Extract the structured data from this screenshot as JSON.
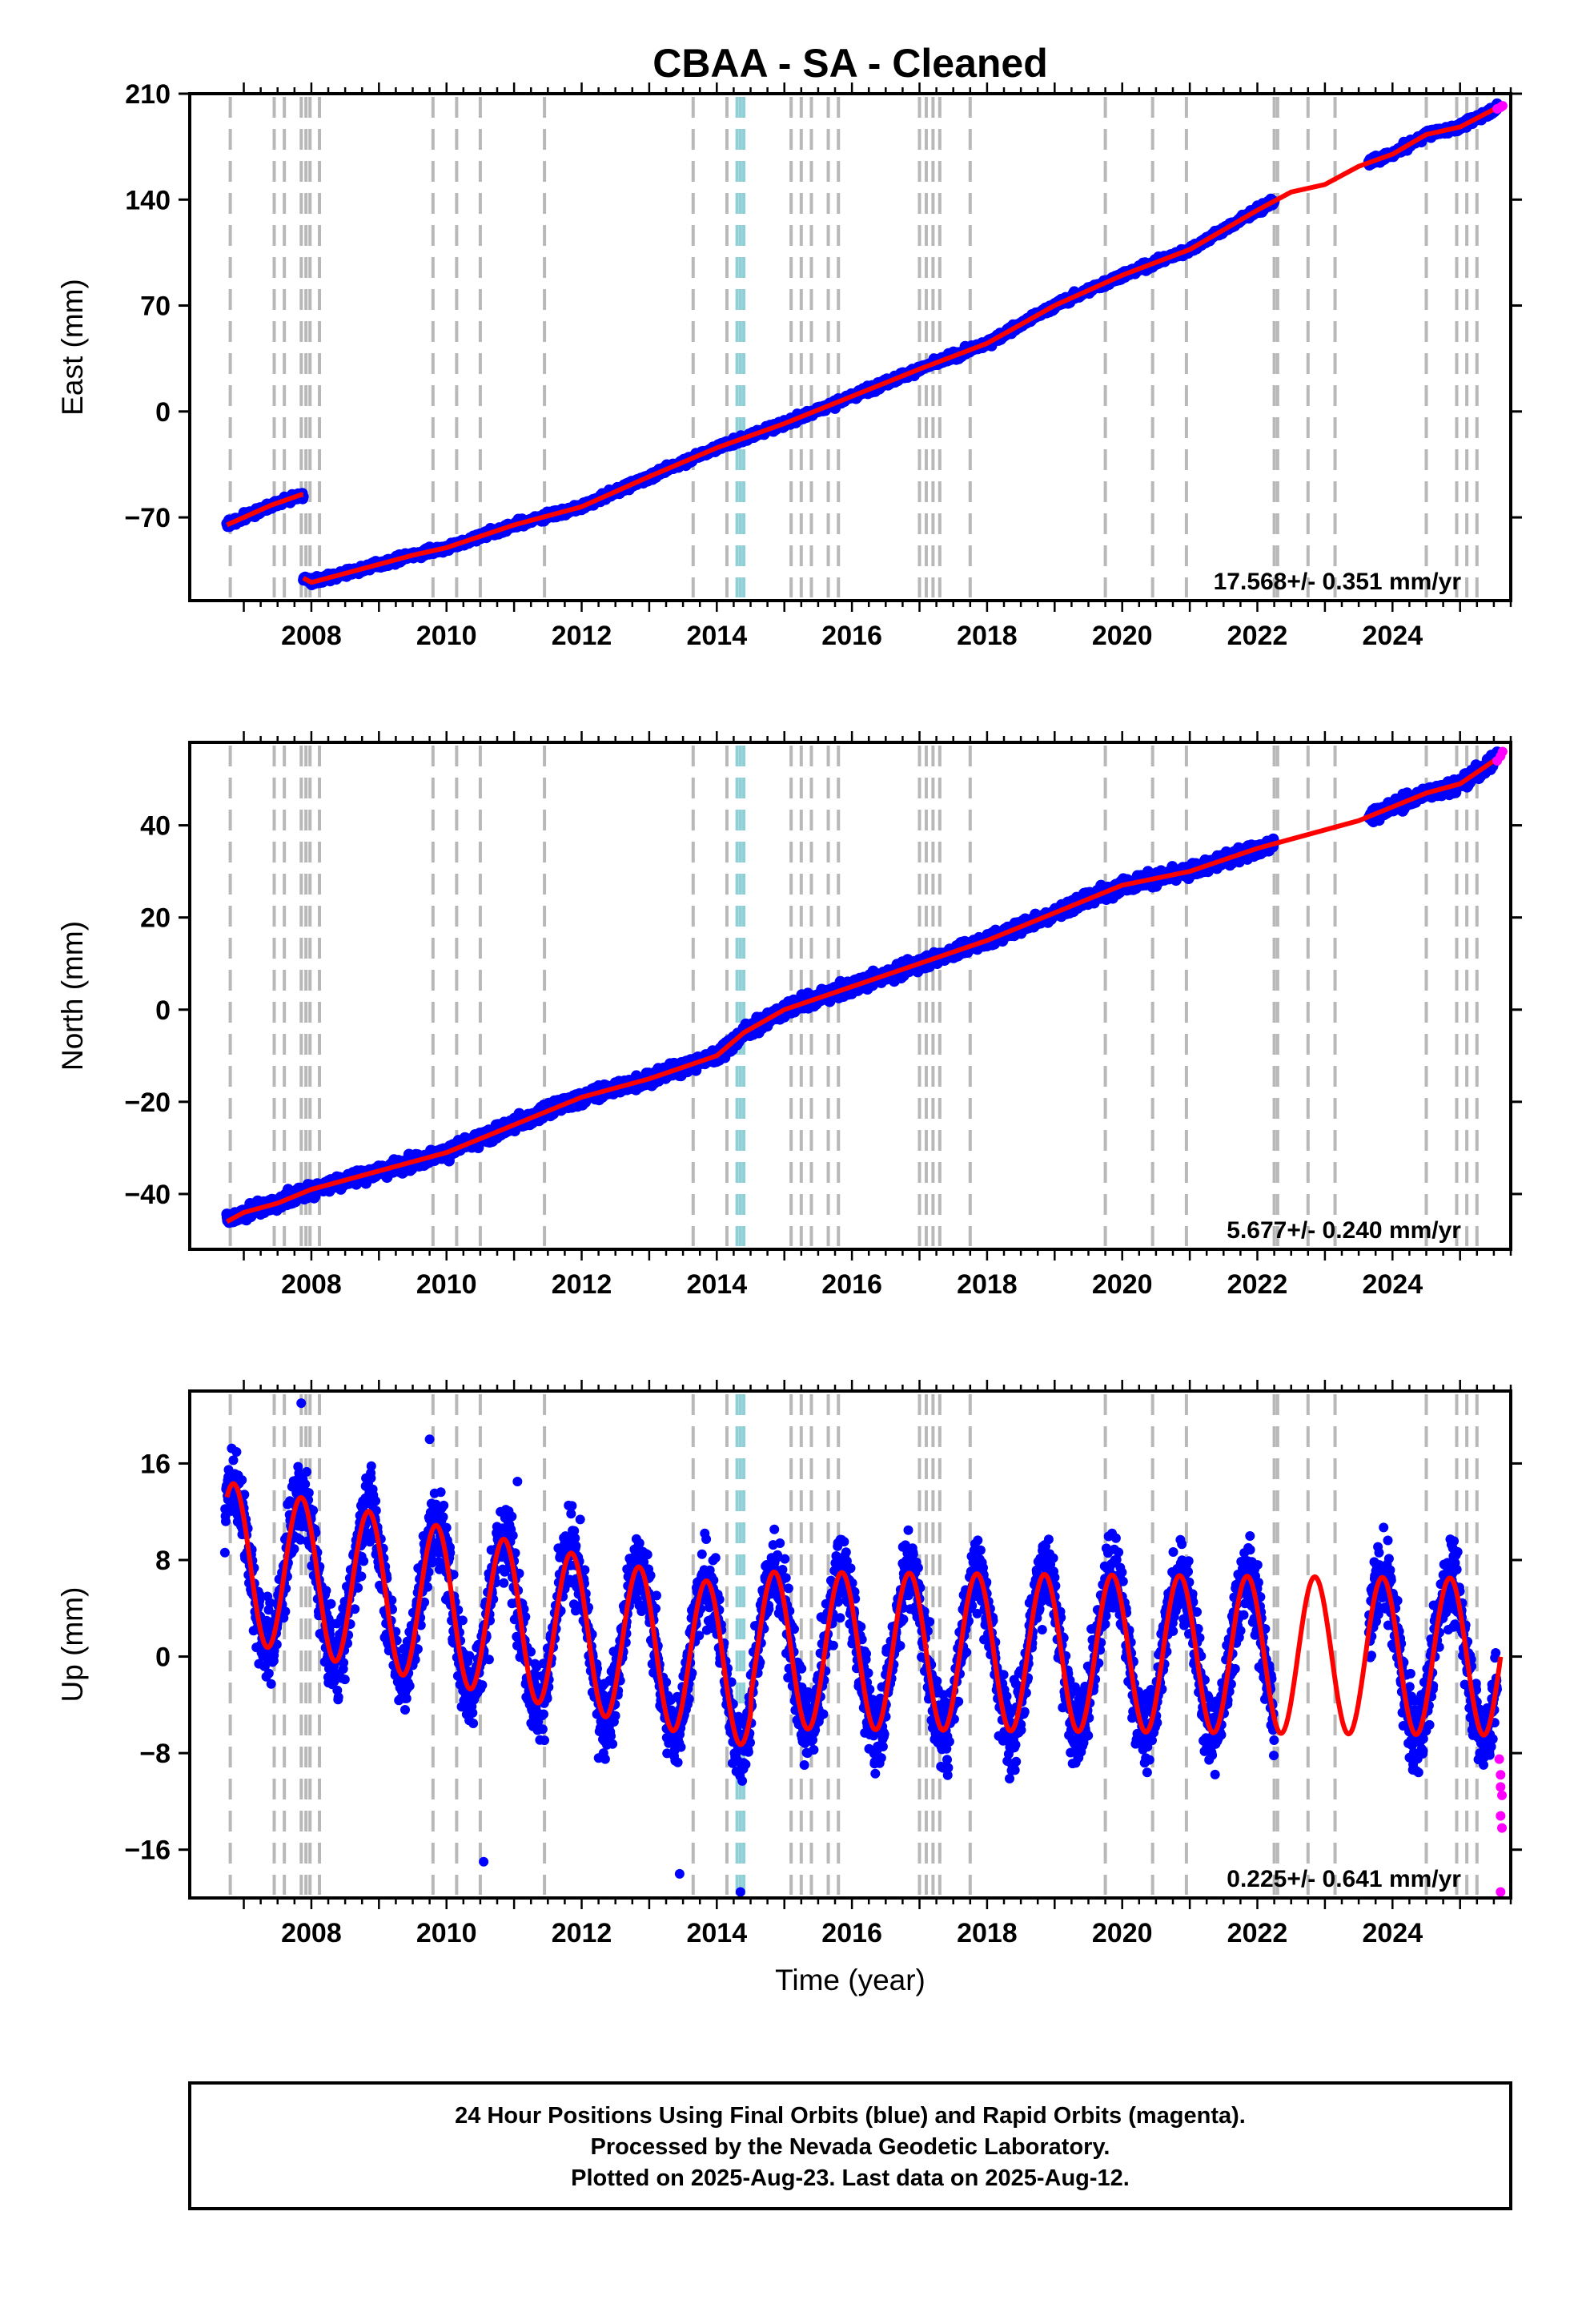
{
  "chart_data": {
    "type": "scatter",
    "title": "CBAA  - SA - Cleaned",
    "xlabel": "Time (year)",
    "xlim": [
      2006.2,
      2025.75
    ],
    "x_ticks": [
      "2008",
      "2010",
      "2012",
      "2014",
      "2016",
      "2018",
      "2020",
      "2022",
      "2024"
    ],
    "grid": "vertical dashed lines marking equipment/offset events",
    "event_lines_gray": [
      2006.8,
      2007.45,
      2007.6,
      2007.85,
      2007.92,
      2007.98,
      2008.12,
      2009.8,
      2010.15,
      2010.5,
      2011.45,
      2013.65,
      2014.15,
      2015.1,
      2015.25,
      2015.4,
      2015.65,
      2015.8,
      2017.0,
      2017.1,
      2017.2,
      2017.3,
      2017.75,
      2019.75,
      2020.45,
      2020.95,
      2022.25,
      2022.3,
      2022.75,
      2023.15,
      2024.5,
      2024.95,
      2025.1,
      2025.25
    ],
    "event_lines_cyan": [
      2014.3,
      2014.35,
      2014.4
    ],
    "legend": [
      {
        "name": "Final Orbits",
        "color": "#0000ff"
      },
      {
        "name": "Rapid Orbits",
        "color": "#ff00ff"
      },
      {
        "name": "Model fit",
        "color": "#ff0000"
      }
    ],
    "panels": [
      {
        "name": "east",
        "ylabel": "East (mm)",
        "ylim": [
          -125,
          210
        ],
        "y_ticks": [
          210,
          140,
          70,
          0,
          -70
        ],
        "y_tick_labels": [
          "210",
          "140",
          "70",
          "0",
          "−70"
        ],
        "rate_label": "17.568+/- 0.351 mm/yr",
        "rate_mm_per_yr": 17.568,
        "rate_sigma": 0.351,
        "segments": [
          {
            "x": [
              2006.75,
              2007.0,
              2007.4,
              2007.85,
              2007.88
            ],
            "y": [
              -75,
              -70,
              -62,
              -55,
              -55
            ]
          },
          {
            "x": [
              2007.88,
              2008.0,
              2008.5,
              2009.0,
              2009.5,
              2010.0,
              2011.0,
              2012.0,
              2013.0,
              2014.0,
              2015.0,
              2016.0,
              2017.0,
              2018.0,
              2019.0,
              2020.0,
              2021.0,
              2022.0
            ],
            "y": [
              -110,
              -113,
              -107,
              -101,
              -95,
              -90,
              -75,
              -63,
              -43,
              -24,
              -8,
              10,
              28,
              45,
              70,
              90,
              107,
              133
            ]
          },
          {
            "x": [
              2022.0,
              2022.5,
              2023.0,
              2023.5,
              2024.0,
              2024.5,
              2025.0,
              2025.6
            ],
            "y": [
              133,
              145,
              150,
              162,
              170,
              183,
              188,
              202
            ]
          }
        ],
        "gap": [
          2022.25,
          2023.65
        ],
        "rapid": {
          "x": [
            2025.55,
            2025.6,
            2025.63
          ],
          "y": [
            200,
            201,
            202
          ]
        }
      },
      {
        "name": "north",
        "ylabel": "North (mm)",
        "ylim": [
          -52,
          58
        ],
        "y_ticks": [
          40,
          20,
          0,
          -20,
          -40
        ],
        "y_tick_labels": [
          "40",
          "20",
          "0",
          "−20",
          "−40"
        ],
        "rate_label": "5.677+/- 0.240 mm/yr",
        "rate_mm_per_yr": 5.677,
        "rate_sigma": 0.24,
        "segments": [
          {
            "x": [
              2006.75,
              2007.0,
              2007.5,
              2008.0,
              2009.0,
              2010.0,
              2011.0,
              2012.0,
              2013.0,
              2014.0,
              2014.4,
              2015.0,
              2016.0,
              2017.0,
              2018.0,
              2019.0,
              2020.0,
              2021.0,
              2022.0
            ],
            "y": [
              -46,
              -44,
              -42,
              -39,
              -35,
              -31,
              -25,
              -19,
              -15,
              -10,
              -5,
              0,
              5,
              10,
              15,
              21,
              27,
              30,
              35
            ]
          },
          {
            "x": [
              2022.0,
              2022.5,
              2023.0,
              2023.5,
              2024.0,
              2024.5,
              2025.0,
              2025.6
            ],
            "y": [
              35,
              37,
              39,
              41,
              44,
              47,
              49,
              55
            ]
          }
        ],
        "gap": [
          2022.25,
          2023.65
        ],
        "rapid": {
          "x": [
            2025.55,
            2025.6,
            2025.63
          ],
          "y": [
            54,
            55,
            56
          ]
        }
      },
      {
        "name": "up",
        "ylabel": "Up (mm)",
        "ylim": [
          -20,
          22
        ],
        "y_ticks": [
          16,
          8,
          0,
          -8,
          -16
        ],
        "y_tick_labels": [
          "16",
          "8",
          "0",
          "−8",
          "−16"
        ],
        "rate_label": "0.225+/- 0.641 mm/yr",
        "rate_mm_per_yr": 0.225,
        "rate_sigma": 0.641,
        "seasonal_amplitude_mm": 6.5,
        "seasonal_peak_times": [
          2006.85,
          2007.85,
          2008.85,
          2009.85,
          2010.85,
          2011.85,
          2012.85,
          2013.85,
          2014.85,
          2015.85,
          2016.85,
          2017.85,
          2018.85,
          2019.85,
          2020.85,
          2021.85,
          2022.85,
          2023.85,
          2024.85
        ],
        "gap": [
          2022.25,
          2023.65
        ],
        "outliers": {
          "x": [
            2007.85,
            2009.75,
            2011.05,
            2014.35,
            2013.45,
            2010.55
          ],
          "y": [
            21,
            18,
            14.5,
            -19.5,
            -18,
            -17
          ]
        },
        "rapid": {
          "x": [
            2025.58,
            2025.6,
            2025.6,
            2025.62,
            2025.6,
            2025.62,
            2025.6
          ],
          "y": [
            -8.5,
            -9.8,
            -10.8,
            -11.5,
            -13.2,
            -14.2,
            -19.5
          ]
        }
      }
    ]
  },
  "footer": {
    "line1": "24 Hour Positions Using Final Orbits (blue) and Rapid Orbits (magenta).",
    "line2": "Processed by the Nevada Geodetic Laboratory.",
    "line3": "Plotted on 2025-Aug-23. Last data on 2025-Aug-12."
  }
}
